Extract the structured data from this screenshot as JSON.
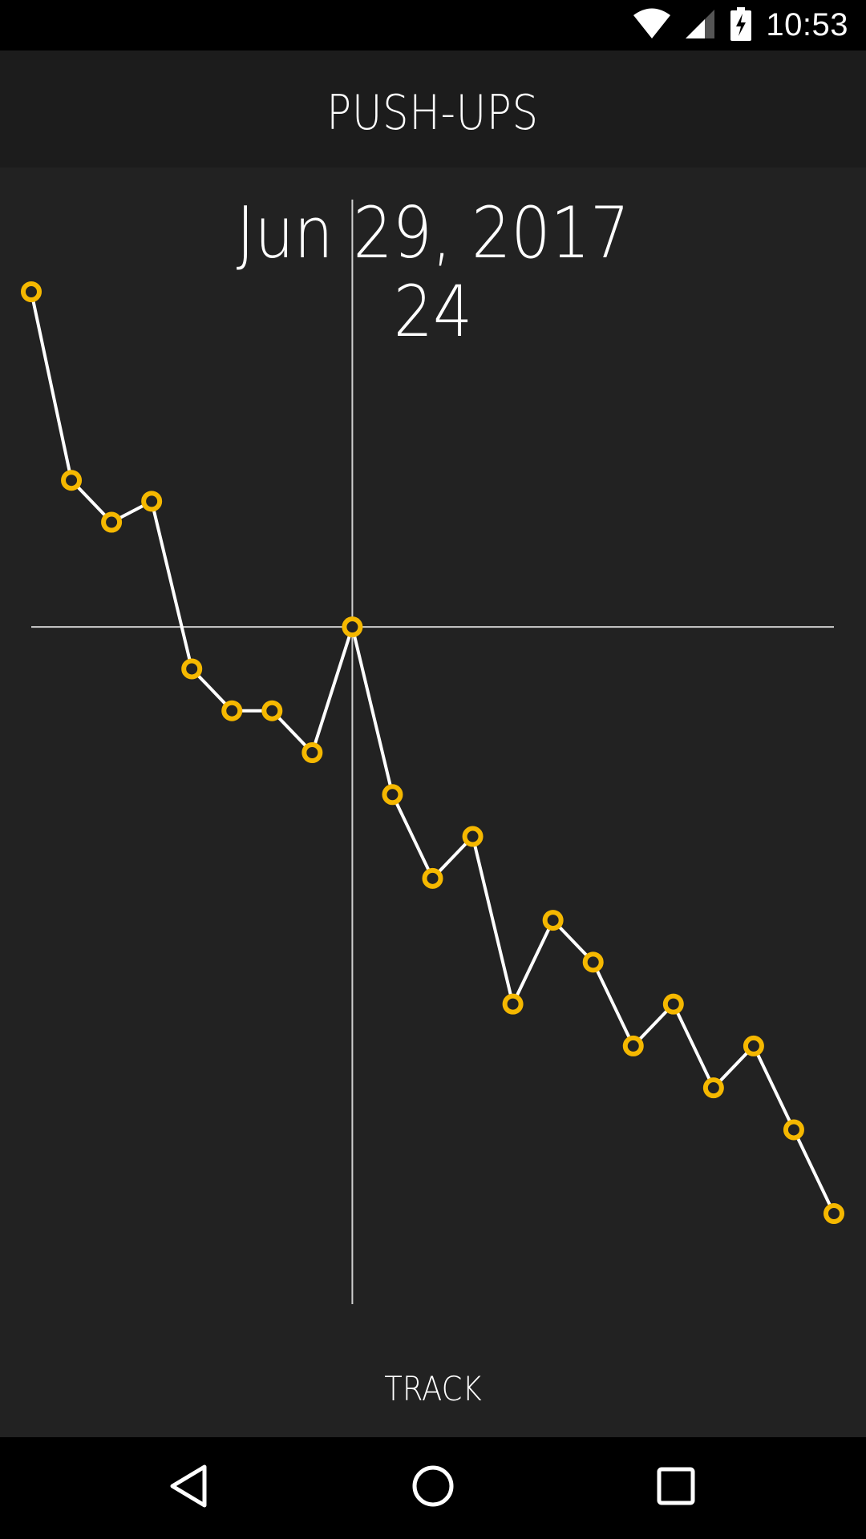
{
  "status_bar": {
    "time": "10:53",
    "icons": [
      "wifi-icon",
      "cell-signal-icon",
      "battery-charging-icon"
    ]
  },
  "app_bar": {
    "title": "PUSH-UPS"
  },
  "readout": {
    "date": "Jun 29, 2017",
    "value": "24"
  },
  "chart_data": {
    "type": "line",
    "title": "",
    "xlabel": "",
    "ylabel": "",
    "grid": false,
    "points": [
      {
        "index": 0,
        "value": 32
      },
      {
        "index": 1,
        "value": 27.5
      },
      {
        "index": 2,
        "value": 26.5
      },
      {
        "index": 3,
        "value": 27
      },
      {
        "index": 4,
        "value": 23
      },
      {
        "index": 5,
        "value": 22
      },
      {
        "index": 6,
        "value": 22
      },
      {
        "index": 7,
        "value": 21
      },
      {
        "index": 8,
        "value": 24
      },
      {
        "index": 9,
        "value": 20
      },
      {
        "index": 10,
        "value": 18
      },
      {
        "index": 11,
        "value": 19
      },
      {
        "index": 12,
        "value": 15
      },
      {
        "index": 13,
        "value": 17
      },
      {
        "index": 14,
        "value": 16
      },
      {
        "index": 15,
        "value": 14
      },
      {
        "index": 16,
        "value": 15
      },
      {
        "index": 17,
        "value": 13
      },
      {
        "index": 18,
        "value": 14
      },
      {
        "index": 19,
        "value": 12
      },
      {
        "index": 20,
        "value": 10
      }
    ],
    "selected_index": 8,
    "ylim": [
      10,
      32
    ],
    "line_color": "#ffffff",
    "marker_color": "#f5b800",
    "crosshair_color": "#cfcfcf"
  },
  "actions": {
    "track_label": "TRACK"
  },
  "nav_bar": {
    "icons": [
      "back-icon",
      "home-icon",
      "recents-icon"
    ]
  },
  "colors": {
    "background": "#222222",
    "app_bar": "#1c1c1c",
    "accent": "#f5b800"
  }
}
